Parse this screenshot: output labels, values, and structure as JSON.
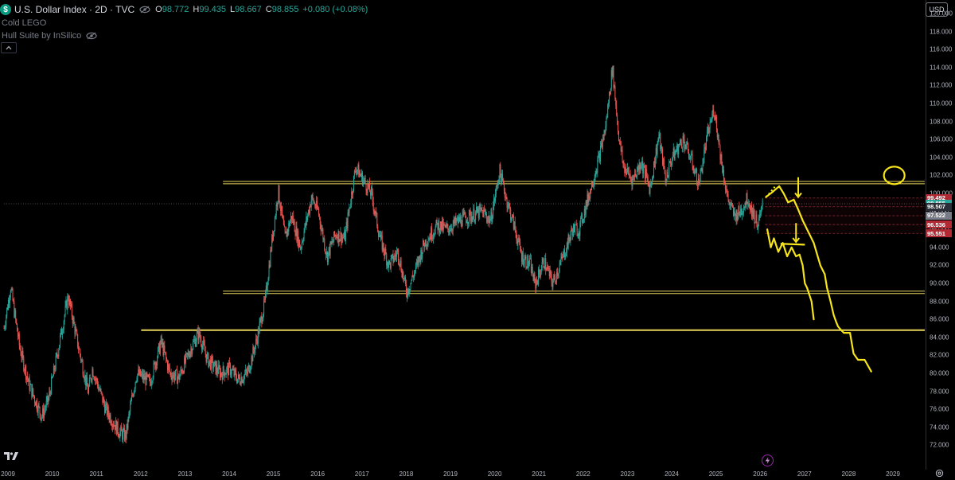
{
  "header": {
    "logo_letter": "$",
    "symbol": "U.S. Dollar Index · 2D · TVC",
    "ohlc": {
      "o_label": "O",
      "o_value": "98.772",
      "h_label": "H",
      "h_value": "99.435",
      "l_label": "L",
      "l_value": "98.667",
      "c_label": "C",
      "c_value": "98.855",
      "change": "+0.080 (+0.08%)"
    }
  },
  "indicators": [
    "Cold LEGO",
    "Hull Suite by InSilico"
  ],
  "currency": "USD",
  "colors": {
    "up": "#26a69a",
    "down": "#ef5350",
    "annotation": "#f5e51a",
    "background": "#000000",
    "hline": "#e6d35a"
  },
  "price_labels": [
    {
      "value": "99.492",
      "bg": "#b22833"
    },
    {
      "value": "98.855",
      "bg": "#26a69a"
    },
    {
      "value": "98.507",
      "bg": "#2a2e39"
    },
    {
      "value": "97.522",
      "bg": "#787b86"
    },
    {
      "value": "96.536",
      "bg": "#b22833"
    },
    {
      "value": "95.551",
      "bg": "#b22833"
    }
  ],
  "chart_data": {
    "type": "candlestick",
    "symbol": "U.S. Dollar Index",
    "timeframe": "2D",
    "x_ticks": [
      "2009",
      "2010",
      "2011",
      "2012",
      "2013",
      "2014",
      "2015",
      "2016",
      "2017",
      "2018",
      "2019",
      "2020",
      "2021",
      "2022",
      "2023",
      "2024",
      "2025",
      "2026",
      "2027",
      "2028",
      "2029"
    ],
    "y_ticks": [
      "120.000",
      "118.000",
      "116.000",
      "114.000",
      "112.000",
      "110.000",
      "108.000",
      "106.000",
      "104.000",
      "102.000",
      "100.000",
      "98.000",
      "96.000",
      "94.000",
      "92.000",
      "90.000",
      "88.000",
      "86.000",
      "84.000",
      "82.000",
      "80.000",
      "78.000",
      "76.000",
      "74.000",
      "72.000"
    ],
    "ylim": [
      72,
      121.5
    ],
    "xlim": [
      2009.0,
      2030.0
    ],
    "price_path": [
      [
        2009.0,
        85.0
      ],
      [
        2009.15,
        89.6
      ],
      [
        2009.35,
        83.0
      ],
      [
        2009.55,
        79.0
      ],
      [
        2009.85,
        75.2
      ],
      [
        2010.0,
        77.0
      ],
      [
        2010.2,
        82.0
      ],
      [
        2010.45,
        88.6
      ],
      [
        2010.7,
        82.5
      ],
      [
        2010.9,
        78.0
      ],
      [
        2011.0,
        80.5
      ],
      [
        2011.3,
        76.0
      ],
      [
        2011.6,
        73.5
      ],
      [
        2011.75,
        73.0
      ],
      [
        2011.9,
        77.5
      ],
      [
        2012.0,
        80.0
      ],
      [
        2012.3,
        79.0
      ],
      [
        2012.55,
        83.5
      ],
      [
        2012.75,
        80.0
      ],
      [
        2012.95,
        79.5
      ],
      [
        2013.2,
        82.5
      ],
      [
        2013.4,
        84.5
      ],
      [
        2013.6,
        81.5
      ],
      [
        2013.9,
        80.0
      ],
      [
        2014.1,
        80.5
      ],
      [
        2014.3,
        79.3
      ],
      [
        2014.5,
        80.0
      ],
      [
        2014.7,
        83.5
      ],
      [
        2014.9,
        88.0
      ],
      [
        2015.05,
        94.5
      ],
      [
        2015.2,
        100.3
      ],
      [
        2015.35,
        95.0
      ],
      [
        2015.5,
        97.5
      ],
      [
        2015.7,
        94.0
      ],
      [
        2015.95,
        99.5
      ],
      [
        2016.1,
        98.0
      ],
      [
        2016.3,
        93.0
      ],
      [
        2016.5,
        95.5
      ],
      [
        2016.7,
        95.0
      ],
      [
        2016.95,
        103.0
      ],
      [
        2017.0,
        102.5
      ],
      [
        2017.3,
        100.0
      ],
      [
        2017.5,
        95.0
      ],
      [
        2017.7,
        92.0
      ],
      [
        2017.9,
        93.5
      ],
      [
        2018.1,
        89.0
      ],
      [
        2018.3,
        91.5
      ],
      [
        2018.5,
        94.5
      ],
      [
        2018.8,
        96.5
      ],
      [
        2019.0,
        96.0
      ],
      [
        2019.3,
        97.0
      ],
      [
        2019.55,
        97.5
      ],
      [
        2019.8,
        98.0
      ],
      [
        2020.0,
        97.0
      ],
      [
        2020.2,
        102.5
      ],
      [
        2020.35,
        99.5
      ],
      [
        2020.55,
        96.0
      ],
      [
        2020.7,
        93.0
      ],
      [
        2020.9,
        92.0
      ],
      [
        2021.0,
        89.8
      ],
      [
        2021.2,
        92.5
      ],
      [
        2021.4,
        90.0
      ],
      [
        2021.6,
        92.5
      ],
      [
        2021.85,
        96.0
      ],
      [
        2022.0,
        96.0
      ],
      [
        2022.2,
        99.5
      ],
      [
        2022.45,
        104.0
      ],
      [
        2022.6,
        107.5
      ],
      [
        2022.75,
        114.0
      ],
      [
        2022.9,
        106.0
      ],
      [
        2023.0,
        103.0
      ],
      [
        2023.2,
        101.5
      ],
      [
        2023.4,
        103.5
      ],
      [
        2023.6,
        100.5
      ],
      [
        2023.8,
        106.5
      ],
      [
        2023.95,
        101.5
      ],
      [
        2024.1,
        104.0
      ],
      [
        2024.35,
        106.0
      ],
      [
        2024.55,
        103.5
      ],
      [
        2024.7,
        101.0
      ],
      [
        2024.9,
        106.5
      ],
      [
        2025.05,
        109.5
      ],
      [
        2025.2,
        104.0
      ],
      [
        2025.35,
        99.5
      ],
      [
        2025.5,
        97.5
      ],
      [
        2025.65,
        98.0
      ],
      [
        2025.8,
        99.5
      ],
      [
        2025.95,
        97.5
      ],
      [
        2026.05,
        96.5
      ],
      [
        2026.15,
        98.8
      ]
    ],
    "horizontal_levels": [
      {
        "value": 101.2,
        "x_start": 2013.95,
        "style": "double"
      },
      {
        "value": 89.0,
        "x_start": 2013.95,
        "style": "double"
      },
      {
        "value": 84.8,
        "x_start": 2012.1,
        "style": "solid"
      },
      {
        "value": 98.85,
        "x_start": 2009.0,
        "style": "dotted"
      }
    ],
    "drawings": [
      {
        "name": "path-a",
        "points": [
          [
            2026.22,
            99.6
          ],
          [
            2026.38,
            100.2
          ],
          [
            2026.52,
            100.8
          ],
          [
            2026.62,
            100.0
          ],
          [
            2026.72,
            99.0
          ],
          [
            2026.85,
            99.3
          ],
          [
            2026.95,
            98.2
          ],
          [
            2027.05,
            97.0
          ],
          [
            2027.15,
            96.0
          ],
          [
            2027.3,
            94.5
          ],
          [
            2027.45,
            92.0
          ],
          [
            2027.55,
            91.0
          ],
          [
            2027.6,
            89.5
          ],
          [
            2027.68,
            88.0
          ],
          [
            2027.75,
            86.5
          ],
          [
            2027.8,
            85.8
          ],
          [
            2027.85,
            85.2
          ],
          [
            2027.92,
            84.8
          ],
          [
            2027.98,
            84.5
          ],
          [
            2028.05,
            84.5
          ],
          [
            2028.12,
            84.5
          ],
          [
            2028.2,
            82.2
          ],
          [
            2028.3,
            81.5
          ],
          [
            2028.45,
            81.5
          ],
          [
            2028.6,
            80.2
          ]
        ]
      },
      {
        "name": "path-b",
        "points": [
          [
            2026.25,
            96.0
          ],
          [
            2026.33,
            94.0
          ],
          [
            2026.4,
            95.0
          ],
          [
            2026.5,
            93.5
          ],
          [
            2026.6,
            94.5
          ],
          [
            2026.7,
            93.0
          ],
          [
            2026.8,
            94.0
          ],
          [
            2026.9,
            93.0
          ],
          [
            2026.98,
            93.2
          ],
          [
            2027.05,
            92.0
          ],
          [
            2027.1,
            90.0
          ],
          [
            2027.15,
            89.5
          ],
          [
            2027.25,
            88.0
          ],
          [
            2027.3,
            86.0
          ]
        ]
      }
    ],
    "annotation_circle": {
      "x": 2029.12,
      "y": 102.0
    }
  }
}
